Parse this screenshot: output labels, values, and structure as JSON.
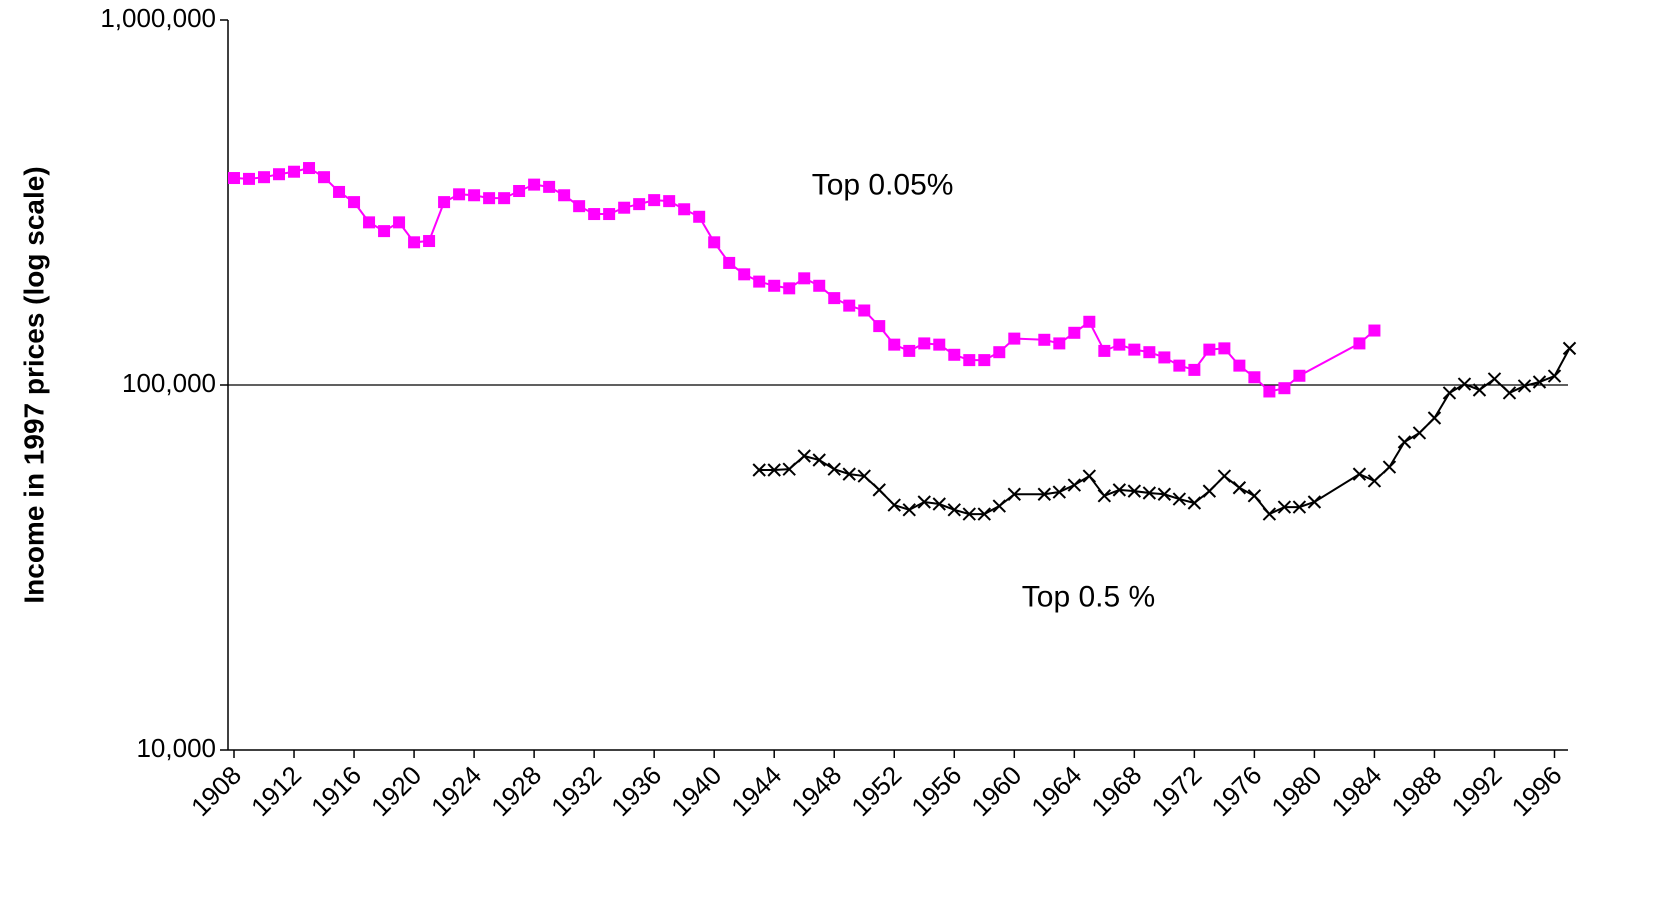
{
  "chart_data": {
    "type": "line",
    "y_label": "Income in 1997 prices (log scale)",
    "log_scale_y": true,
    "ylim": [
      10000,
      1000000
    ],
    "yticks": [
      {
        "value": 10000,
        "label": "10,000"
      },
      {
        "value": 100000,
        "label": "100,000"
      },
      {
        "value": 1000000,
        "label": "1,000,000"
      }
    ],
    "xlim": [
      1907.6,
      1996.9
    ],
    "xticks": [
      1908,
      1912,
      1916,
      1920,
      1924,
      1928,
      1932,
      1936,
      1940,
      1944,
      1948,
      1952,
      1956,
      1960,
      1964,
      1968,
      1972,
      1976,
      1980,
      1984,
      1988,
      1992,
      1996
    ],
    "grid": true,
    "annotations": [
      {
        "text": "Top 0.05%",
        "x": 1946.5,
        "y": 350000
      },
      {
        "text": "Top 0.5 %",
        "x": 1960.5,
        "y": 26000
      }
    ],
    "series": [
      {
        "name": "Top 0.05%",
        "color": "#ff00ff",
        "marker": "square",
        "x": [
          1908,
          1909,
          1910,
          1911,
          1912,
          1913,
          1914,
          1915,
          1916,
          1917,
          1918,
          1919,
          1920,
          1921,
          1922,
          1923,
          1924,
          1925,
          1926,
          1927,
          1928,
          1929,
          1930,
          1931,
          1932,
          1933,
          1934,
          1935,
          1936,
          1937,
          1938,
          1939,
          1940,
          1941,
          1942,
          1943,
          1944,
          1945,
          1946,
          1947,
          1948,
          1949,
          1950,
          1951,
          1952,
          1953,
          1954,
          1955,
          1956,
          1957,
          1958,
          1959,
          1960,
          1962,
          1963,
          1964,
          1965,
          1966,
          1967,
          1968,
          1969,
          1970,
          1971,
          1972,
          1973,
          1974,
          1975,
          1976,
          1977,
          1978,
          1979,
          1983,
          1984
        ],
        "values": [
          369000,
          367000,
          371000,
          378000,
          384000,
          393000,
          371000,
          338000,
          317000,
          279000,
          264000,
          279000,
          246000,
          248000,
          317000,
          333000,
          331000,
          325000,
          325000,
          340000,
          354000,
          349000,
          331000,
          309000,
          294000,
          294000,
          306000,
          313000,
          321000,
          319000,
          303000,
          289000,
          246000,
          216000,
          201000,
          192000,
          187000,
          184000,
          196000,
          187000,
          173000,
          165000,
          160000,
          145000,
          129000,
          124000,
          130000,
          129000,
          121000,
          117000,
          117000,
          123000,
          134000,
          133000,
          130000,
          139000,
          149000,
          124000,
          129000,
          125000,
          123000,
          119000,
          113000,
          110000,
          125000,
          126000,
          113000,
          105000,
          96000,
          98000,
          106000,
          130000,
          141000
        ]
      },
      {
        "name": "Top 0.5 %",
        "color": "#000000",
        "marker": "x",
        "x": [
          1943,
          1944,
          1945,
          1946,
          1947,
          1948,
          1949,
          1950,
          1951,
          1952,
          1953,
          1954,
          1955,
          1956,
          1957,
          1958,
          1959,
          1960,
          1962,
          1963,
          1964,
          1965,
          1966,
          1967,
          1968,
          1969,
          1970,
          1971,
          1972,
          1973,
          1974,
          1975,
          1976,
          1977,
          1978,
          1979,
          1980,
          1983,
          1984,
          1985,
          1986,
          1987,
          1988,
          1989,
          1990,
          1991,
          1992,
          1993,
          1994,
          1995,
          1996,
          1997
        ],
        "values": [
          58500,
          58500,
          58800,
          63900,
          62300,
          58800,
          57000,
          56300,
          51600,
          46900,
          45500,
          47800,
          47200,
          45500,
          44300,
          44300,
          46600,
          50200,
          50200,
          50900,
          53200,
          56300,
          49700,
          51600,
          51200,
          50600,
          50200,
          48700,
          47500,
          51200,
          56300,
          52300,
          49700,
          44300,
          46300,
          46300,
          47800,
          57000,
          54600,
          59600,
          69800,
          73900,
          81200,
          95100,
          100600,
          96900,
          103900,
          95100,
          99400,
          101900,
          105800,
          126000
        ]
      }
    ]
  }
}
